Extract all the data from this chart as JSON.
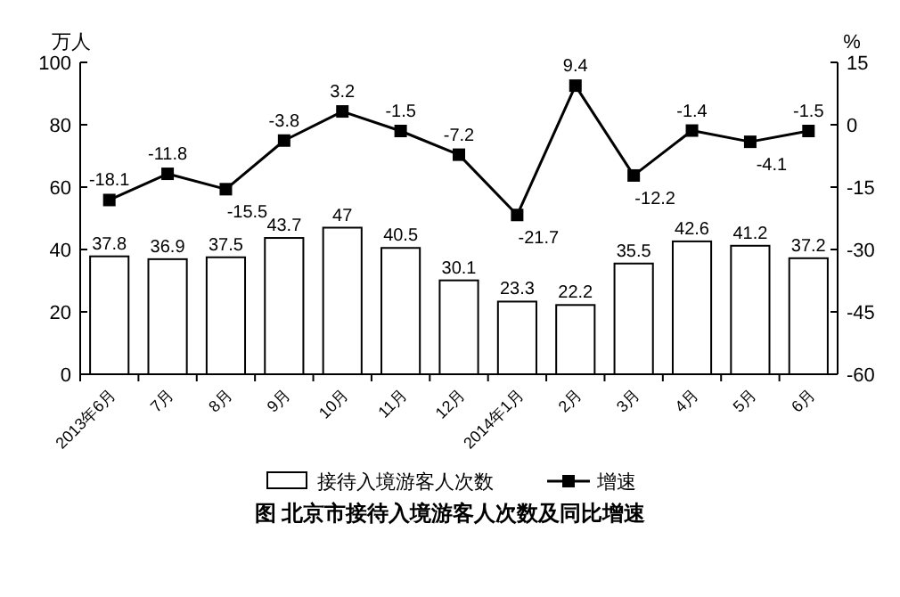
{
  "chart_data": {
    "type": "bar",
    "title": "图  北京市接待入境游客人次数及同比增速",
    "ylabel": "万人",
    "y2label": "%",
    "categories": [
      "2013年6月",
      "7月",
      "8月",
      "9月",
      "10月",
      "11月",
      "12月",
      "2014年1月",
      "2月",
      "3月",
      "4月",
      "5月",
      "6月"
    ],
    "series": [
      {
        "name": "接待入境游客人次数",
        "color": "#ffffff",
        "values": [
          37.8,
          36.9,
          37.5,
          43.7,
          47,
          40.5,
          30.1,
          23.3,
          22.2,
          35.5,
          42.6,
          41.2,
          37.2
        ]
      },
      {
        "name": "增速",
        "type": "line",
        "axis": "y2",
        "color": "#000000",
        "values": [
          -18.1,
          -11.8,
          -15.5,
          -3.8,
          3.2,
          -1.5,
          -7.2,
          -21.7,
          9.4,
          -12.2,
          -1.4,
          -4.1,
          -1.5
        ]
      }
    ],
    "ylim": [
      0,
      100
    ],
    "yticks": [
      0,
      20,
      40,
      60,
      80,
      100
    ],
    "y2lim": [
      -60,
      15
    ],
    "y2ticks": [
      -60,
      -45,
      -30,
      -15,
      0,
      15
    ],
    "data_labels": true,
    "legend": "bottom",
    "marker": "square",
    "grid": false
  }
}
